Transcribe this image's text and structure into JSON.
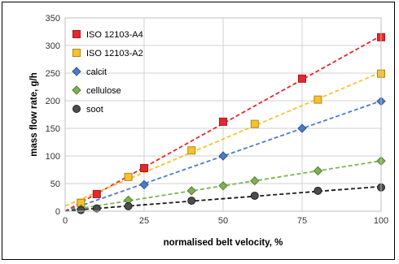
{
  "chart_data": {
    "type": "scatter",
    "title": "",
    "xlabel": "normalised belt velocity, %",
    "ylabel": "mass flow rate, g/h",
    "xlim": [
      0,
      100
    ],
    "ylim": [
      0,
      350
    ],
    "xticks": [
      0,
      25,
      50,
      75,
      100
    ],
    "yticks": [
      0,
      50,
      100,
      150,
      200,
      250,
      300,
      350
    ],
    "grid": true,
    "legend_position": "top-left",
    "trendlines": "dashed linear fit per series",
    "series": [
      {
        "name": "ISO 12103-A4",
        "marker": "square",
        "color": "#e8262b",
        "x": [
          5,
          10,
          25,
          50,
          75,
          100
        ],
        "y": [
          15,
          31,
          78,
          162,
          240,
          315
        ]
      },
      {
        "name": "ISO 12103-A2",
        "marker": "square",
        "color": "#f9c22a",
        "x": [
          5,
          20,
          40,
          60,
          80,
          100
        ],
        "y": [
          15,
          62,
          110,
          158,
          202,
          249
        ]
      },
      {
        "name": "calcit",
        "marker": "diamond",
        "color": "#4a7cc9",
        "x": [
          25,
          50,
          75,
          100
        ],
        "y": [
          48,
          100,
          150,
          199
        ]
      },
      {
        "name": "cellulose",
        "marker": "diamond",
        "color": "#7db350",
        "x": [
          5,
          20,
          40,
          50,
          60,
          80,
          100
        ],
        "y": [
          4,
          20,
          37,
          46,
          55,
          73,
          91
        ]
      },
      {
        "name": "soot",
        "marker": "circle",
        "color": "#4d4d4d",
        "x": [
          5,
          10,
          20,
          40,
          60,
          80,
          100
        ],
        "y": [
          2,
          5,
          9,
          19,
          28,
          37,
          43
        ]
      }
    ]
  }
}
